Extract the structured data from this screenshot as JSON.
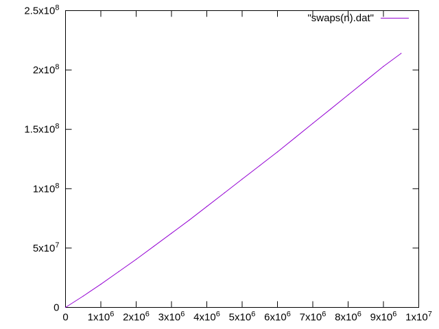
{
  "chart_data": {
    "type": "line",
    "title": "",
    "xlabel": "",
    "ylabel": "",
    "xlim": [
      0,
      10000000
    ],
    "ylim": [
      0,
      250000000
    ],
    "grid": false,
    "legend_position": "top-right",
    "x_ticks": [
      {
        "value": 0,
        "mantissa": "0",
        "exponent": ""
      },
      {
        "value": 1000000,
        "mantissa": "1x10",
        "exponent": "6"
      },
      {
        "value": 2000000,
        "mantissa": "2x10",
        "exponent": "6"
      },
      {
        "value": 3000000,
        "mantissa": "3x10",
        "exponent": "6"
      },
      {
        "value": 4000000,
        "mantissa": "4x10",
        "exponent": "6"
      },
      {
        "value": 5000000,
        "mantissa": "5x10",
        "exponent": "6"
      },
      {
        "value": 6000000,
        "mantissa": "6x10",
        "exponent": "6"
      },
      {
        "value": 7000000,
        "mantissa": "7x10",
        "exponent": "6"
      },
      {
        "value": 8000000,
        "mantissa": "8x10",
        "exponent": "6"
      },
      {
        "value": 9000000,
        "mantissa": "9x10",
        "exponent": "6"
      },
      {
        "value": 10000000,
        "mantissa": "1x10",
        "exponent": "7"
      }
    ],
    "y_ticks": [
      {
        "value": 0,
        "mantissa": "0",
        "exponent": ""
      },
      {
        "value": 50000000,
        "mantissa": "5x10",
        "exponent": "7"
      },
      {
        "value": 100000000,
        "mantissa": "1x10",
        "exponent": "8"
      },
      {
        "value": 150000000,
        "mantissa": "1.5x10",
        "exponent": "8"
      },
      {
        "value": 200000000,
        "mantissa": "2x10",
        "exponent": "8"
      },
      {
        "value": 250000000,
        "mantissa": "2.5x10",
        "exponent": "8"
      }
    ],
    "series": [
      {
        "name": "\"swaps(n).dat\"",
        "color": "#9400d3",
        "x": [
          0,
          500000,
          1000000,
          1500000,
          2000000,
          2500000,
          3000000,
          3500000,
          4000000,
          4500000,
          5000000,
          5500000,
          6000000,
          6500000,
          7000000,
          7500000,
          8000000,
          8500000,
          9000000,
          9500000
        ],
        "y": [
          0,
          9500000,
          19500000,
          30000000,
          40500000,
          51500000,
          62500000,
          73500000,
          85000000,
          96500000,
          108000000,
          119500000,
          131000000,
          143000000,
          155000000,
          167000000,
          179000000,
          191000000,
          203000000,
          214000000
        ]
      }
    ]
  }
}
